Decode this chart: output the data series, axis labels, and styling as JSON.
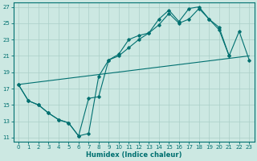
{
  "bg_color": "#cce8e2",
  "grid_color": "#aacfc8",
  "line_color": "#007070",
  "xlabel": "Humidex (Indice chaleur)",
  "xlim": [
    -0.5,
    23.5
  ],
  "ylim": [
    10.5,
    27.5
  ],
  "yticks": [
    11,
    13,
    15,
    17,
    19,
    21,
    23,
    25,
    27
  ],
  "line1_x": [
    0,
    1,
    2,
    3,
    4,
    5,
    6,
    7,
    8,
    9,
    10,
    11,
    12,
    13,
    14,
    15,
    16,
    17,
    18,
    19,
    20,
    21
  ],
  "line1_y": [
    17.5,
    15.5,
    15.0,
    14.0,
    13.2,
    12.8,
    11.2,
    11.5,
    18.5,
    20.5,
    21.2,
    23.0,
    23.5,
    23.8,
    25.5,
    26.6,
    25.2,
    26.8,
    27.0,
    25.5,
    24.5,
    21.0
  ],
  "line2_x": [
    0,
    1,
    2,
    3,
    4,
    5,
    6,
    7,
    8,
    9,
    10,
    11,
    12,
    13,
    14,
    15,
    16,
    17,
    18,
    19,
    20,
    21,
    22,
    23
  ],
  "line2_y": [
    17.5,
    15.5,
    15.0,
    14.0,
    13.2,
    12.8,
    11.2,
    15.8,
    16.0,
    20.5,
    21.0,
    22.0,
    23.0,
    23.8,
    24.8,
    26.2,
    25.0,
    25.5,
    26.8,
    25.5,
    24.2,
    21.0,
    24.0,
    20.5
  ],
  "line3_x": [
    0,
    23
  ],
  "line3_y": [
    17.5,
    21.0
  ],
  "tick_fontsize": 5,
  "xlabel_fontsize": 6
}
